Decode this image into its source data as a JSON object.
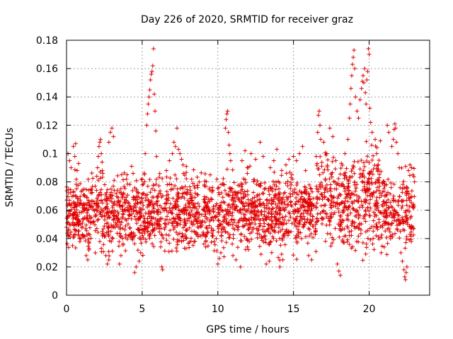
{
  "chart_data": {
    "type": "scatter",
    "title": "Day 226 of 2020, SRMTID for receiver graz",
    "xlabel": "GPS time / hours",
    "ylabel": "SRMTID / TECUs",
    "xlim": [
      0,
      24
    ],
    "ylim": [
      0,
      0.18
    ],
    "xticks": [
      0,
      5,
      10,
      15,
      20
    ],
    "xtick_labels": [
      "0",
      "5",
      "10",
      "15",
      "20"
    ],
    "yticks": [
      0,
      0.02,
      0.04,
      0.06,
      0.08,
      0.1,
      0.12,
      0.14,
      0.16,
      0.18
    ],
    "ytick_labels": [
      "0",
      "0.02",
      "0.04",
      "0.06",
      "0.08",
      "0.1",
      "0.12",
      "0.14",
      "0.16",
      "0.18"
    ],
    "grid": true,
    "marker": "+",
    "color": "#e00000",
    "x_data_range": [
      0,
      23
    ],
    "series": [
      {
        "name": "SRMTID",
        "points": [
          [
            0.1,
            0.1
          ],
          [
            0.2,
            0.095
          ],
          [
            0.3,
            0.09
          ],
          [
            0.45,
            0.105
          ],
          [
            0.55,
            0.098
          ],
          [
            0.6,
            0.107
          ],
          [
            0.7,
            0.088
          ],
          [
            0.8,
            0.093
          ],
          [
            1.3,
            0.028
          ],
          [
            1.4,
            0.025
          ],
          [
            1.5,
            0.033
          ],
          [
            2.0,
            0.084
          ],
          [
            2.05,
            0.09
          ],
          [
            2.1,
            0.098
          ],
          [
            2.15,
            0.105
          ],
          [
            2.2,
            0.108
          ],
          [
            2.25,
            0.11
          ],
          [
            2.3,
            0.1
          ],
          [
            2.35,
            0.094
          ],
          [
            2.4,
            0.086
          ],
          [
            2.6,
            0.028
          ],
          [
            2.7,
            0.022
          ],
          [
            2.8,
            0.108
          ],
          [
            2.9,
            0.115
          ],
          [
            3.0,
            0.118
          ],
          [
            3.1,
            0.112
          ],
          [
            3.5,
            0.022
          ],
          [
            3.6,
            0.028
          ],
          [
            4.0,
            0.085
          ],
          [
            4.3,
            0.091
          ],
          [
            4.4,
            0.086
          ],
          [
            4.5,
            0.016
          ],
          [
            4.6,
            0.02
          ],
          [
            4.8,
            0.024
          ],
          [
            4.9,
            0.03
          ],
          [
            5.0,
            0.082
          ],
          [
            5.2,
            0.1
          ],
          [
            5.3,
            0.12
          ],
          [
            5.35,
            0.128
          ],
          [
            5.4,
            0.135
          ],
          [
            5.45,
            0.14
          ],
          [
            5.5,
            0.145
          ],
          [
            5.55,
            0.152
          ],
          [
            5.6,
            0.156
          ],
          [
            5.65,
            0.158
          ],
          [
            5.7,
            0.162
          ],
          [
            5.75,
            0.174
          ],
          [
            5.8,
            0.142
          ],
          [
            5.85,
            0.13
          ],
          [
            5.9,
            0.116
          ],
          [
            5.95,
            0.098
          ],
          [
            6.3,
            0.02
          ],
          [
            6.35,
            0.018
          ],
          [
            6.6,
            0.088
          ],
          [
            6.8,
            0.095
          ],
          [
            7.0,
            0.1
          ],
          [
            7.1,
            0.108
          ],
          [
            7.2,
            0.105
          ],
          [
            7.3,
            0.118
          ],
          [
            7.4,
            0.103
          ],
          [
            7.5,
            0.1
          ],
          [
            7.6,
            0.096
          ],
          [
            7.7,
            0.092
          ],
          [
            10.0,
            0.022
          ],
          [
            10.1,
            0.026
          ],
          [
            10.2,
            0.03
          ],
          [
            10.5,
            0.118
          ],
          [
            10.55,
            0.124
          ],
          [
            10.6,
            0.128
          ],
          [
            10.65,
            0.13
          ],
          [
            10.7,
            0.115
          ],
          [
            10.75,
            0.106
          ],
          [
            10.8,
            0.1
          ],
          [
            10.85,
            0.095
          ],
          [
            11.0,
            0.028
          ],
          [
            11.2,
            0.025
          ],
          [
            11.5,
            0.02
          ],
          [
            11.6,
            0.095
          ],
          [
            11.8,
            0.102
          ],
          [
            12.0,
            0.09
          ],
          [
            12.2,
            0.1
          ],
          [
            12.5,
            0.096
          ],
          [
            12.8,
            0.108
          ],
          [
            13.0,
            0.098
          ],
          [
            13.2,
            0.022
          ],
          [
            13.4,
            0.024
          ],
          [
            13.7,
            0.095
          ],
          [
            13.9,
            0.103
          ],
          [
            14.1,
            0.02
          ],
          [
            14.3,
            0.025
          ],
          [
            14.5,
            0.092
          ],
          [
            14.7,
            0.096
          ],
          [
            15.0,
            0.098
          ],
          [
            15.2,
            0.095
          ],
          [
            15.4,
            0.1
          ],
          [
            15.6,
            0.105
          ],
          [
            15.8,
            0.088
          ],
          [
            16.0,
            0.028
          ],
          [
            16.2,
            0.025
          ],
          [
            16.5,
            0.098
          ],
          [
            16.6,
            0.115
          ],
          [
            16.65,
            0.127
          ],
          [
            16.7,
            0.13
          ],
          [
            16.75,
            0.12
          ],
          [
            16.8,
            0.11
          ],
          [
            17.0,
            0.108
          ],
          [
            17.2,
            0.1
          ],
          [
            17.4,
            0.118
          ],
          [
            17.6,
            0.112
          ],
          [
            17.8,
            0.095
          ],
          [
            17.9,
            0.022
          ],
          [
            18.0,
            0.017
          ],
          [
            18.1,
            0.014
          ],
          [
            18.4,
            0.1
          ],
          [
            18.6,
            0.11
          ],
          [
            18.7,
            0.125
          ],
          [
            18.75,
            0.135
          ],
          [
            18.8,
            0.146
          ],
          [
            18.85,
            0.155
          ],
          [
            18.9,
            0.163
          ],
          [
            18.95,
            0.168
          ],
          [
            19.0,
            0.173
          ],
          [
            19.05,
            0.16
          ],
          [
            19.1,
            0.14
          ],
          [
            19.2,
            0.13
          ],
          [
            19.3,
            0.125
          ],
          [
            19.4,
            0.138
          ],
          [
            19.5,
            0.146
          ],
          [
            19.55,
            0.151
          ],
          [
            19.6,
            0.155
          ],
          [
            19.65,
            0.15
          ],
          [
            19.7,
            0.16
          ],
          [
            19.75,
            0.143
          ],
          [
            19.8,
            0.135
          ],
          [
            19.85,
            0.152
          ],
          [
            19.9,
            0.158
          ],
          [
            19.95,
            0.174
          ],
          [
            20.0,
            0.17
          ],
          [
            20.05,
            0.132
          ],
          [
            20.1,
            0.122
          ],
          [
            20.2,
            0.115
          ],
          [
            20.4,
            0.11
          ],
          [
            20.5,
            0.1
          ],
          [
            20.6,
            0.092
          ],
          [
            20.8,
            0.03
          ],
          [
            21.0,
            0.034
          ],
          [
            21.2,
            0.12
          ],
          [
            21.3,
            0.115
          ],
          [
            21.5,
            0.105
          ],
          [
            21.6,
            0.11
          ],
          [
            21.65,
            0.117
          ],
          [
            21.7,
            0.121
          ],
          [
            21.75,
            0.118
          ],
          [
            21.8,
            0.108
          ],
          [
            21.9,
            0.1
          ],
          [
            22.0,
            0.09
          ],
          [
            22.1,
            0.03
          ],
          [
            22.2,
            0.024
          ],
          [
            22.3,
            0.018
          ],
          [
            22.35,
            0.013
          ],
          [
            22.4,
            0.011
          ],
          [
            22.45,
            0.016
          ],
          [
            22.5,
            0.02
          ],
          [
            22.6,
            0.088
          ],
          [
            22.7,
            0.092
          ],
          [
            22.8,
            0.09
          ],
          [
            22.9,
            0.085
          ],
          [
            23.0,
            0.08
          ]
        ]
      }
    ]
  }
}
